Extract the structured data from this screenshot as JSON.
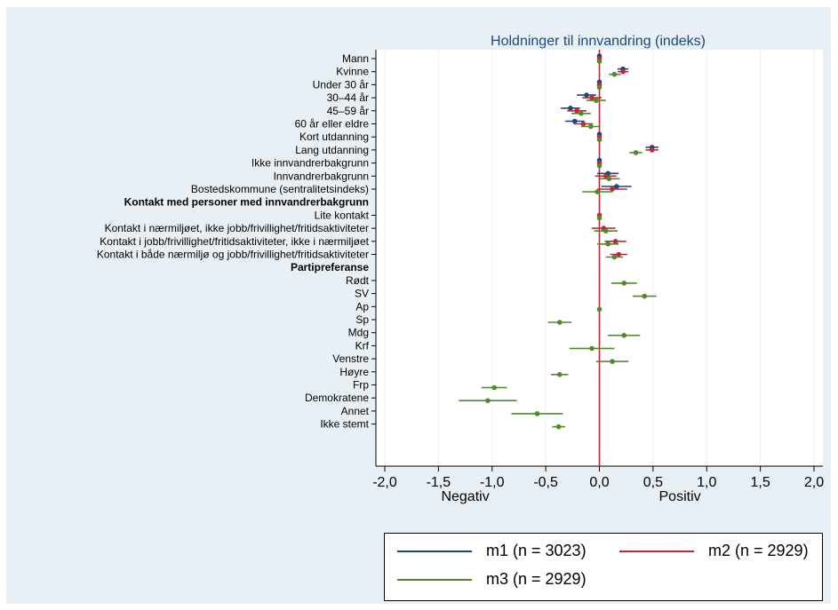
{
  "chart_data": {
    "type": "scatter",
    "title": "Holdninger til innvandring (indeks)",
    "xlim": [
      -2.0,
      2.0
    ],
    "x_ticks": [
      "-2,0",
      "-1,5",
      "-1,0",
      "-0,5",
      "0,0",
      "0,5",
      "1,0",
      "1,5",
      "2,0"
    ],
    "x_tick_values": [
      -2.0,
      -1.5,
      -1.0,
      -0.5,
      0.0,
      0.5,
      1.0,
      1.5,
      2.0
    ],
    "x_end_labels": {
      "left": "Negativ",
      "right": "Positiv"
    },
    "reference_line_x": 0,
    "grid": "vertical",
    "legend_placement": "bottom",
    "series": [
      {
        "name": "m1 (n = 3023)",
        "color": "#1a477f"
      },
      {
        "name": "m2 (n = 2929)",
        "color": "#c0283a"
      },
      {
        "name": "m3 (n = 2929)",
        "color": "#4f8b2a"
      }
    ],
    "rows": [
      {
        "label": "Mann",
        "m1": [
          0,
          0,
          0
        ],
        "m2": [
          0,
          0,
          0
        ],
        "m3": [
          0,
          0,
          0
        ]
      },
      {
        "label": "Kvinne",
        "m1": [
          0.22,
          0.17,
          0.27
        ],
        "m2": [
          0.22,
          0.17,
          0.27
        ],
        "m3": [
          0.14,
          0.09,
          0.2
        ]
      },
      {
        "label": "Under 30 år",
        "m1": [
          0,
          0,
          0
        ],
        "m2": [
          0,
          0,
          0
        ],
        "m3": [
          0,
          0,
          0
        ]
      },
      {
        "label": "30–44 år",
        "m1": [
          -0.12,
          -0.21,
          -0.03
        ],
        "m2": [
          -0.07,
          -0.16,
          0.02
        ],
        "m3": [
          -0.03,
          -0.12,
          0.06
        ]
      },
      {
        "label": "45–59 år",
        "m1": [
          -0.27,
          -0.36,
          -0.18
        ],
        "m2": [
          -0.21,
          -0.3,
          -0.12
        ],
        "m3": [
          -0.17,
          -0.26,
          -0.08
        ]
      },
      {
        "label": "60 år eller eldre",
        "m1": [
          -0.23,
          -0.32,
          -0.14
        ],
        "m2": [
          -0.15,
          -0.24,
          -0.06
        ],
        "m3": [
          -0.08,
          -0.17,
          0.01
        ]
      },
      {
        "label": "Kort utdanning",
        "m1": [
          0,
          0,
          0
        ],
        "m2": [
          0,
          0,
          0
        ],
        "m3": [
          0,
          0,
          0
        ]
      },
      {
        "label": "Lang utdanning",
        "m1": [
          0.49,
          0.43,
          0.55
        ],
        "m2": [
          0.49,
          0.43,
          0.55
        ],
        "m3": [
          0.34,
          0.28,
          0.4
        ]
      },
      {
        "label": "Ikke innvandrerbakgrunn",
        "m1": [
          0,
          0,
          0
        ],
        "m2": [
          0,
          0,
          0
        ],
        "m3": [
          0,
          0,
          0
        ]
      },
      {
        "label": "Innvandrerbakgrunn",
        "m1": [
          0.08,
          -0.02,
          0.18
        ],
        "m2": [
          0.06,
          -0.04,
          0.16
        ],
        "m3": [
          0.09,
          -0.01,
          0.19
        ]
      },
      {
        "label": "Bostedskommune (sentralitetsindeks)",
        "m1": [
          0.16,
          0.02,
          0.3
        ],
        "m2": [
          0.12,
          -0.02,
          0.26
        ],
        "m3": [
          -0.02,
          -0.16,
          0.12
        ]
      },
      {
        "label": "Kontakt med personer med innvandrerbakgrunn",
        "heading": true
      },
      {
        "label": "Lite kontakt",
        "m1": null,
        "m2": [
          0,
          0,
          0
        ],
        "m3": [
          0,
          0,
          0
        ]
      },
      {
        "label": "Kontakt i nærmiljøet, ikke jobb/frivillighet/fritidsaktiviteter",
        "m1": null,
        "m2": [
          0.04,
          -0.07,
          0.15
        ],
        "m3": [
          0.06,
          -0.05,
          0.17
        ]
      },
      {
        "label": "Kontakt i jobb/frivillighet/fritidsaktiviteter, ikke i nærmiljøet",
        "m1": null,
        "m2": [
          0.15,
          0.05,
          0.25
        ],
        "m3": [
          0.08,
          -0.02,
          0.18
        ]
      },
      {
        "label": "Kontakt i både nærmiljø og jobb/frivillighet/fritidsaktiviteter",
        "m1": null,
        "m2": [
          0.18,
          0.1,
          0.26
        ],
        "m3": [
          0.14,
          0.06,
          0.22
        ]
      },
      {
        "label": "Partipreferanse",
        "heading": true
      },
      {
        "label": "Rødt",
        "m1": null,
        "m2": null,
        "m3": [
          0.23,
          0.11,
          0.35
        ]
      },
      {
        "label": "SV",
        "m1": null,
        "m2": null,
        "m3": [
          0.42,
          0.31,
          0.53
        ]
      },
      {
        "label": "Ap",
        "m1": null,
        "m2": null,
        "m3": [
          0,
          0,
          0
        ]
      },
      {
        "label": "Sp",
        "m1": null,
        "m2": null,
        "m3": [
          -0.37,
          -0.48,
          -0.26
        ]
      },
      {
        "label": "Mdg",
        "m1": null,
        "m2": null,
        "m3": [
          0.23,
          0.08,
          0.38
        ]
      },
      {
        "label": "Krf",
        "m1": null,
        "m2": null,
        "m3": [
          -0.07,
          -0.28,
          0.14
        ]
      },
      {
        "label": "Venstre",
        "m1": null,
        "m2": null,
        "m3": [
          0.12,
          -0.03,
          0.27
        ]
      },
      {
        "label": "Høyre",
        "m1": null,
        "m2": null,
        "m3": [
          -0.37,
          -0.45,
          -0.29
        ]
      },
      {
        "label": "Frp",
        "m1": null,
        "m2": null,
        "m3": [
          -0.98,
          -1.1,
          -0.86
        ]
      },
      {
        "label": "Demokratene",
        "m1": null,
        "m2": null,
        "m3": [
          -1.04,
          -1.31,
          -0.77
        ]
      },
      {
        "label": "Annet",
        "m1": null,
        "m2": null,
        "m3": [
          -0.58,
          -0.82,
          -0.34
        ]
      },
      {
        "label": "Ikke stemt",
        "m1": null,
        "m2": null,
        "m3": [
          -0.38,
          -0.44,
          -0.32
        ]
      }
    ]
  },
  "colors": {
    "panel_bg": "#e9f0f5",
    "plot_bg": "#ffffff",
    "grid": "#e9f0f5",
    "reference_line": "#c0283a"
  }
}
